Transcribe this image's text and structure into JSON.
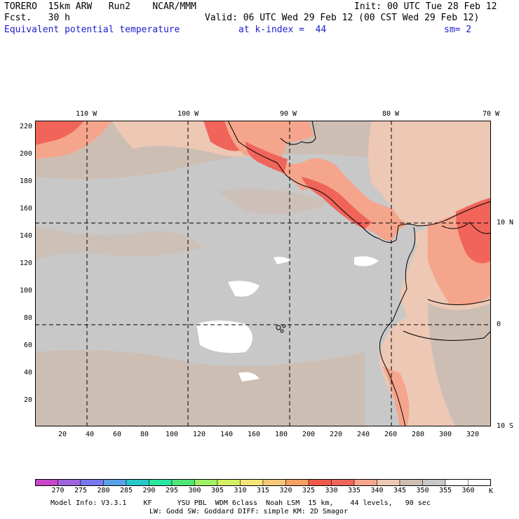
{
  "header": {
    "title": "TORERO  15km ARW   Run2    NCAR/MMM",
    "init": "Init: 00 UTC Tue 28 Feb 12",
    "fcst": "Fcst.   30 h",
    "valid": "Valid: 06 UTC Wed 29 Feb 12 (00 CST Wed 29 Feb 12)",
    "field": "Equivalent potential temperature",
    "level": "at k-index =  44",
    "smooth": "sm= 2"
  },
  "lon_labels": [
    "110 W",
    "100 W",
    "90 W",
    "80 W",
    "70 W"
  ],
  "lat_labels": [
    "10 N",
    "0",
    "10 S"
  ],
  "y_ticks": [
    "220",
    "200",
    "180",
    "160",
    "140",
    "120",
    "100",
    "80",
    "60",
    "40",
    "20"
  ],
  "x_ticks": [
    "20",
    "40",
    "60",
    "80",
    "100",
    "120",
    "140",
    "160",
    "180",
    "200",
    "220",
    "240",
    "260",
    "280",
    "300",
    "320"
  ],
  "colorbar": {
    "labels": [
      "270",
      "275",
      "280",
      "285",
      "290",
      "295",
      "300",
      "305",
      "310",
      "315",
      "320",
      "325",
      "330",
      "335",
      "340",
      "345",
      "350",
      "355",
      "360"
    ],
    "unit": "K",
    "colors": [
      "#c846c8",
      "#a064dc",
      "#7878f0",
      "#5aa0e6",
      "#28c8c8",
      "#28e6a0",
      "#50e678",
      "#a0f064",
      "#d2f064",
      "#f5e678",
      "#f5c878",
      "#f5a064",
      "#f05a4b",
      "#f0645a",
      "#f5a58c",
      "#edc8b4",
      "#cdbeb4",
      "#c8c8c8",
      "#ffffff"
    ]
  },
  "footer": {
    "line1": "Model Info: V3.3.1    KF      YSU PBL  WDM 6class  Noah LSM  15 km,    44 levels,   90 sec",
    "line2": "LW: Godd SW: Goddard DIFF: simple KM: 2D Smagor"
  }
}
